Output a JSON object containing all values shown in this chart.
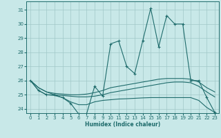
{
  "xlabel": "Humidex (Indice chaleur)",
  "background_color": "#c8e8e8",
  "grid_color": "#a0c8c8",
  "line_color": "#1e6b6b",
  "xlim": [
    -0.5,
    23.5
  ],
  "ylim": [
    23.7,
    31.6
  ],
  "yticks": [
    24,
    25,
    26,
    27,
    28,
    29,
    30,
    31
  ],
  "xticks": [
    0,
    1,
    2,
    3,
    4,
    5,
    6,
    7,
    8,
    9,
    10,
    11,
    12,
    13,
    14,
    15,
    16,
    17,
    18,
    19,
    20,
    21,
    22,
    23
  ],
  "line1_x": [
    0,
    1,
    2,
    3,
    4,
    5,
    6,
    7,
    8,
    9,
    10,
    11,
    12,
    13,
    14,
    15,
    16,
    17,
    18,
    19,
    20,
    21,
    22,
    23
  ],
  "line1_y": [
    26.0,
    25.3,
    25.0,
    25.0,
    24.8,
    24.4,
    23.65,
    23.65,
    25.6,
    24.9,
    28.6,
    28.8,
    27.0,
    26.5,
    28.8,
    31.1,
    28.4,
    30.6,
    30.0,
    30.0,
    26.0,
    26.0,
    24.8,
    23.75
  ],
  "line2_x": [
    0,
    1,
    2,
    3,
    4,
    5,
    6,
    7,
    8,
    9,
    10,
    11,
    12,
    13,
    14,
    15,
    16,
    17,
    18,
    19,
    20,
    21,
    22,
    23
  ],
  "line2_y": [
    26.0,
    25.5,
    25.2,
    25.1,
    25.05,
    25.0,
    25.0,
    25.05,
    25.15,
    25.3,
    25.5,
    25.6,
    25.7,
    25.8,
    25.9,
    26.0,
    26.1,
    26.15,
    26.15,
    26.15,
    26.1,
    25.9,
    25.5,
    25.2
  ],
  "line3_x": [
    0,
    1,
    2,
    3,
    4,
    5,
    6,
    7,
    8,
    9,
    10,
    11,
    12,
    13,
    14,
    15,
    16,
    17,
    18,
    19,
    20,
    21,
    22,
    23
  ],
  "line3_y": [
    26.0,
    25.5,
    25.2,
    25.0,
    24.95,
    24.9,
    24.85,
    24.85,
    24.9,
    25.0,
    25.15,
    25.25,
    25.35,
    25.45,
    25.55,
    25.65,
    25.75,
    25.85,
    25.9,
    25.9,
    25.85,
    25.6,
    25.2,
    24.85
  ],
  "line4_x": [
    0,
    1,
    2,
    3,
    4,
    5,
    6,
    7,
    8,
    9,
    10,
    11,
    12,
    13,
    14,
    15,
    16,
    17,
    18,
    19,
    20,
    21,
    22,
    23
  ],
  "line4_y": [
    26.0,
    25.3,
    25.0,
    24.95,
    24.8,
    24.5,
    24.3,
    24.3,
    24.5,
    24.6,
    24.65,
    24.7,
    24.72,
    24.75,
    24.78,
    24.8,
    24.8,
    24.8,
    24.8,
    24.8,
    24.8,
    24.6,
    24.1,
    23.75
  ]
}
